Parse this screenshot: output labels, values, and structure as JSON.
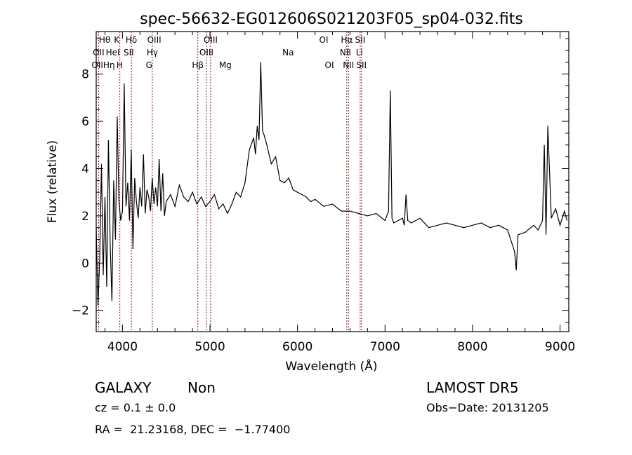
{
  "chart_data": {
    "type": "line",
    "title": "spec-56632-EG012606S021203F05_sp04-032.fits",
    "xlabel": "Wavelength (Å)",
    "ylabel": "Flux (relative)",
    "xlim": [
      3700,
      9100
    ],
    "ylim": [
      -2.9,
      9.8
    ],
    "xticks": [
      4000,
      5000,
      6000,
      7000,
      8000,
      9000
    ],
    "xtick_labels": [
      "4000",
      "5000",
      "6000",
      "7000",
      "8000",
      "9000"
    ],
    "yticks": [
      -2,
      0,
      2,
      4,
      6,
      8
    ],
    "ytick_labels": [
      "−2",
      "0",
      "2",
      "4",
      "6",
      "8"
    ],
    "grid": false,
    "line_color": "#000000",
    "marker_color": "#8b1a1a",
    "spectrum": {
      "x": [
        3700,
        3720,
        3740,
        3760,
        3780,
        3800,
        3820,
        3840,
        3860,
        3880,
        3900,
        3920,
        3940,
        3960,
        3980,
        4000,
        4020,
        4040,
        4060,
        4080,
        4100,
        4120,
        4140,
        4160,
        4180,
        4200,
        4220,
        4240,
        4260,
        4280,
        4300,
        4320,
        4340,
        4360,
        4380,
        4400,
        4420,
        4440,
        4460,
        4480,
        4500,
        4550,
        4600,
        4650,
        4700,
        4750,
        4800,
        4850,
        4900,
        4950,
        5000,
        5050,
        5100,
        5150,
        5200,
        5250,
        5300,
        5350,
        5400,
        5450,
        5500,
        5520,
        5540,
        5560,
        5580,
        5600,
        5620,
        5650,
        5700,
        5750,
        5800,
        5850,
        5900,
        5950,
        6000,
        6050,
        6100,
        6150,
        6200,
        6300,
        6400,
        6500,
        6600,
        6700,
        6800,
        6900,
        7000,
        7040,
        7060,
        7080,
        7100,
        7150,
        7200,
        7220,
        7240,
        7260,
        7300,
        7400,
        7500,
        7600,
        7700,
        7800,
        7900,
        8000,
        8100,
        8200,
        8300,
        8400,
        8480,
        8500,
        8520,
        8600,
        8700,
        8750,
        8800,
        8820,
        8840,
        8860,
        8900,
        8950,
        9000,
        9050,
        9080
      ],
      "y": [
        1.5,
        -1.8,
        0.2,
        4.2,
        -0.5,
        2.8,
        -1.0,
        5.2,
        0.8,
        -1.6,
        3.5,
        1.0,
        6.2,
        2.6,
        1.8,
        2.2,
        7.6,
        2.4,
        3.4,
        1.8,
        4.8,
        0.6,
        3.6,
        2.6,
        1.9,
        3.2,
        2.4,
        4.6,
        2.1,
        3.1,
        2.8,
        2.2,
        3.6,
        2.5,
        3.2,
        2.4,
        4.4,
        2.2,
        3.8,
        2.0,
        2.6,
        2.9,
        2.4,
        3.3,
        2.8,
        2.6,
        3.0,
        2.5,
        2.8,
        2.4,
        2.6,
        2.9,
        2.3,
        2.5,
        2.1,
        2.5,
        3.0,
        2.8,
        3.4,
        4.8,
        5.3,
        4.6,
        5.8,
        5.2,
        8.5,
        5.6,
        5.4,
        5.0,
        4.2,
        4.5,
        3.5,
        3.4,
        3.6,
        3.1,
        3.0,
        2.9,
        2.8,
        2.6,
        2.7,
        2.4,
        2.5,
        2.2,
        2.2,
        2.1,
        2.0,
        2.1,
        1.8,
        2.2,
        7.3,
        1.9,
        1.7,
        1.8,
        1.9,
        1.6,
        2.9,
        1.8,
        1.7,
        1.9,
        1.5,
        1.6,
        1.7,
        1.6,
        1.5,
        1.6,
        1.7,
        1.5,
        1.6,
        1.4,
        0.5,
        -0.3,
        1.2,
        1.3,
        1.6,
        1.4,
        1.8,
        5.0,
        1.2,
        5.8,
        1.9,
        2.3,
        1.6,
        2.2,
        1.8
      ]
    },
    "line_markers": [
      {
        "wave": 3727,
        "label": "OII",
        "row": 2
      },
      {
        "wave": 3970,
        "label": "Hε",
        "row": 2
      },
      {
        "wave": 4102,
        "label": "Hδ",
        "row": 0
      },
      {
        "wave": 4341,
        "label": "Hγ",
        "row": 1
      },
      {
        "wave": 4861,
        "label": "Hβ",
        "row": 2
      },
      {
        "wave": 4959,
        "label": "OIII",
        "row": 0
      },
      {
        "wave": 5007,
        "label": "OIII",
        "row": 1
      },
      {
        "wave": 6563,
        "label": "Hα",
        "row": 0
      },
      {
        "wave": 6583,
        "label": "NII",
        "row": 1
      },
      {
        "wave": 6716,
        "label": "SII",
        "row": 0
      },
      {
        "wave": 6731,
        "label": "SII",
        "row": 2
      }
    ],
    "line_labels": {
      "row0": [
        {
          "text": "Hθ",
          "wave": 3797
        },
        {
          "text": "K",
          "wave": 3934
        },
        {
          "text": "Hδ",
          "wave": 4102
        },
        {
          "text": "OIII",
          "wave": 4363
        },
        {
          "text": "OIII",
          "wave": 5007
        },
        {
          "text": "OI",
          "wave": 6300
        },
        {
          "text": "Hα",
          "wave": 6563
        },
        {
          "text": "SII",
          "wave": 6716
        }
      ],
      "row1": [
        {
          "text": "OII",
          "wave": 3727
        },
        {
          "text": "HeI",
          "wave": 3889
        },
        {
          "text": "SII",
          "wave": 4072
        },
        {
          "text": "Hγ",
          "wave": 4341
        },
        {
          "text": "OIII",
          "wave": 4959
        },
        {
          "text": "Na",
          "wave": 5893
        },
        {
          "text": "NII",
          "wave": 6548
        },
        {
          "text": "Li",
          "wave": 6708
        }
      ],
      "row2": [
        {
          "text": "OIIHη",
          "wave": 3780
        },
        {
          "text": "H",
          "wave": 3968
        },
        {
          "text": "G",
          "wave": 4304
        },
        {
          "text": "Hβ",
          "wave": 4861
        },
        {
          "text": "Mg",
          "wave": 5175
        },
        {
          "text": "OI",
          "wave": 6364
        },
        {
          "text": "NII",
          "wave": 6583
        },
        {
          "text": "SII",
          "wave": 6731
        }
      ]
    }
  },
  "info": {
    "class": "GALAXY",
    "subclass": "Non",
    "cz": "cz = 0.1 ± 0.0",
    "coords": "RA =  21.23168, DEC =  −1.77400",
    "survey": "LAMOST DR5",
    "obs_date": "Obs−Date: 20131205"
  }
}
